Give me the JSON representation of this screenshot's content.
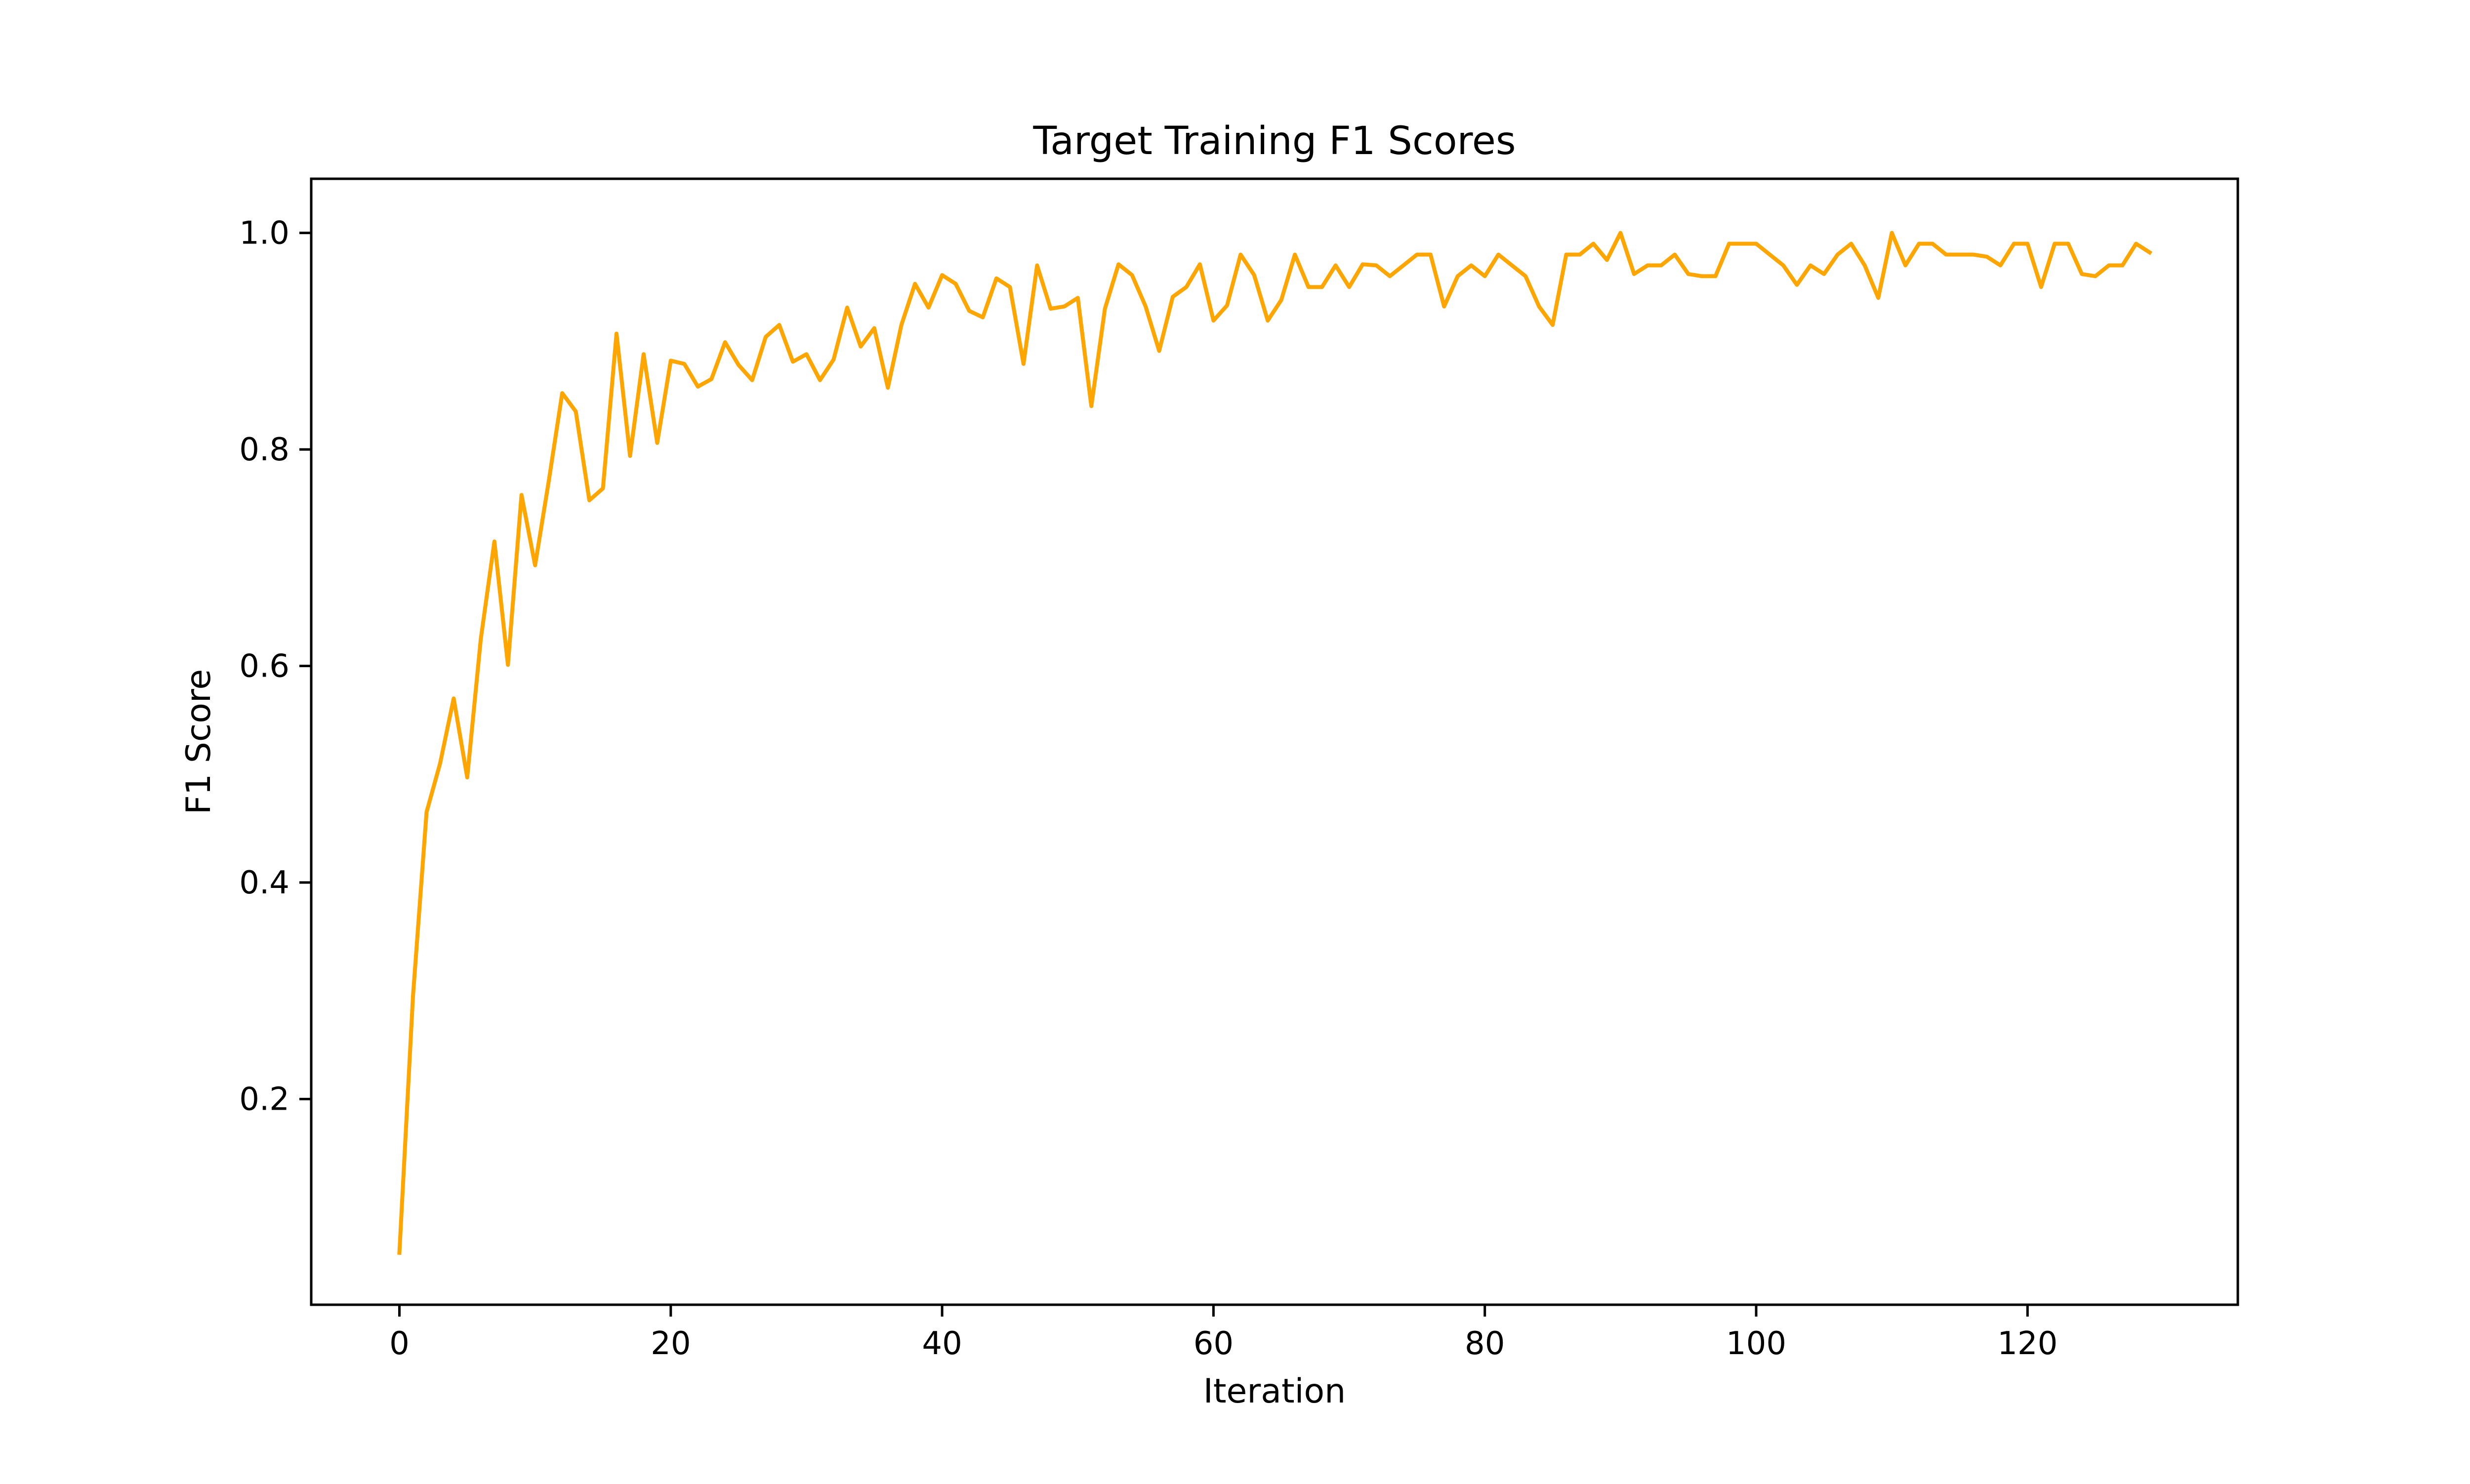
{
  "chart_data": {
    "type": "line",
    "title": "Target Training F1 Scores",
    "xlabel": "Iteration",
    "ylabel": "F1 Score",
    "xlim": [
      -6.5,
      135.5
    ],
    "ylim": [
      0.01,
      1.05
    ],
    "xticks": [
      0,
      20,
      40,
      60,
      80,
      100,
      120
    ],
    "yticks": [
      0.2,
      0.4,
      0.6,
      0.8,
      1.0
    ],
    "xtick_labels": [
      "0",
      "20",
      "40",
      "60",
      "80",
      "100",
      "120"
    ],
    "ytick_labels": [
      "0.2",
      "0.4",
      "0.6",
      "0.8",
      "1.0"
    ],
    "grid": false,
    "legend": "none",
    "series": [
      {
        "color": "#ffa500",
        "x": [
          0,
          1,
          2,
          3,
          4,
          5,
          6,
          7,
          8,
          9,
          10,
          11,
          12,
          13,
          14,
          15,
          16,
          17,
          18,
          19,
          20,
          21,
          22,
          23,
          24,
          25,
          26,
          27,
          28,
          29,
          30,
          31,
          32,
          33,
          34,
          35,
          36,
          37,
          38,
          39,
          40,
          41,
          42,
          43,
          44,
          45,
          46,
          47,
          48,
          49,
          50,
          51,
          52,
          53,
          54,
          55,
          56,
          57,
          58,
          59,
          60,
          61,
          62,
          63,
          64,
          65,
          66,
          67,
          68,
          69,
          70,
          71,
          72,
          73,
          74,
          75,
          76,
          77,
          78,
          79,
          80,
          81,
          82,
          83,
          84,
          85,
          86,
          87,
          88,
          89,
          90,
          91,
          92,
          93,
          94,
          95,
          96,
          97,
          98,
          99,
          100,
          101,
          102,
          103,
          104,
          105,
          106,
          107,
          108,
          109,
          110,
          111,
          112,
          113,
          114,
          115,
          116,
          117,
          118,
          119,
          120,
          121,
          122,
          123,
          124,
          125,
          126,
          127,
          128,
          129
        ],
        "y": [
          0.058,
          0.295,
          0.465,
          0.51,
          0.57,
          0.497,
          0.625,
          0.715,
          0.601,
          0.758,
          0.693,
          0.77,
          0.852,
          0.835,
          0.753,
          0.764,
          0.907,
          0.794,
          0.888,
          0.806,
          0.882,
          0.879,
          0.858,
          0.865,
          0.899,
          0.878,
          0.864,
          0.904,
          0.915,
          0.881,
          0.888,
          0.864,
          0.883,
          0.931,
          0.895,
          0.912,
          0.857,
          0.915,
          0.953,
          0.931,
          0.961,
          0.953,
          0.928,
          0.922,
          0.958,
          0.95,
          0.879,
          0.97,
          0.93,
          0.932,
          0.94,
          0.84,
          0.93,
          0.971,
          0.961,
          0.932,
          0.891,
          0.941,
          0.95,
          0.971,
          0.919,
          0.933,
          0.98,
          0.961,
          0.919,
          0.938,
          0.98,
          0.95,
          0.95,
          0.97,
          0.95,
          0.971,
          0.97,
          0.96,
          0.97,
          0.98,
          0.98,
          0.932,
          0.96,
          0.97,
          0.96,
          0.98,
          0.97,
          0.96,
          0.932,
          0.915,
          0.98,
          0.98,
          0.99,
          0.975,
          1.0,
          0.962,
          0.97,
          0.97,
          0.98,
          0.962,
          0.96,
          0.96,
          0.99,
          0.99,
          0.99,
          0.98,
          0.97,
          0.952,
          0.97,
          0.962,
          0.98,
          0.99,
          0.97,
          0.94,
          1.0,
          0.97,
          0.99,
          0.99,
          0.98,
          0.98,
          0.98,
          0.978,
          0.97,
          0.99,
          0.99,
          0.95,
          0.99,
          0.99,
          0.962,
          0.96,
          0.97,
          0.97,
          0.99,
          0.982
        ]
      }
    ]
  }
}
